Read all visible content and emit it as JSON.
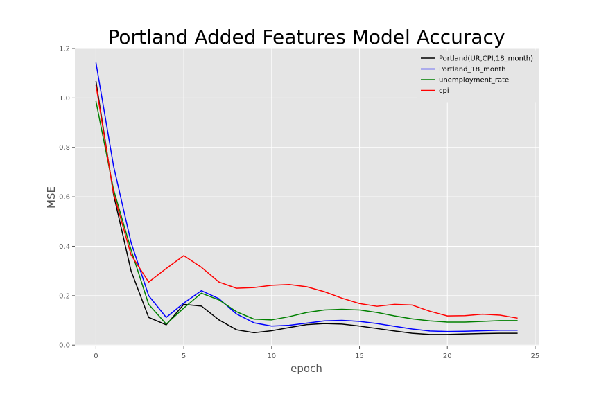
{
  "chart_data": {
    "type": "line",
    "title": "Portland Added Features Model Accuracy",
    "xlabel": "epoch",
    "ylabel": "MSE",
    "xlim": [
      -1.2,
      25.2
    ],
    "ylim": [
      -0.005,
      1.2
    ],
    "xticks": [
      0,
      5,
      10,
      15,
      20,
      25
    ],
    "yticks": [
      0.0,
      0.2,
      0.4,
      0.6,
      0.8,
      1.0,
      1.2
    ],
    "grid": true,
    "style": "ggplot",
    "legend_position": "top-right",
    "x": [
      0,
      1,
      2,
      3,
      4,
      5,
      6,
      7,
      8,
      9,
      10,
      11,
      12,
      13,
      14,
      15,
      16,
      17,
      18,
      19,
      20,
      21,
      22,
      23,
      24
    ],
    "series": [
      {
        "name": "Portland(UR,CPI,18_month)",
        "color": "#000000",
        "values": [
          1.068,
          0.61,
          0.3,
          0.112,
          0.082,
          0.165,
          0.158,
          0.102,
          0.062,
          0.05,
          0.058,
          0.071,
          0.083,
          0.087,
          0.085,
          0.077,
          0.067,
          0.057,
          0.048,
          0.043,
          0.043,
          0.045,
          0.047,
          0.048,
          0.048
        ]
      },
      {
        "name": "Portland_18_month",
        "color": "#0000ff",
        "values": [
          1.143,
          0.725,
          0.415,
          0.2,
          0.112,
          0.17,
          0.22,
          0.188,
          0.126,
          0.09,
          0.077,
          0.08,
          0.089,
          0.098,
          0.1,
          0.096,
          0.087,
          0.076,
          0.065,
          0.057,
          0.055,
          0.056,
          0.058,
          0.06,
          0.06
        ]
      },
      {
        "name": "unemployment_rate",
        "color": "#008000",
        "values": [
          0.987,
          0.63,
          0.385,
          0.165,
          0.085,
          0.15,
          0.21,
          0.183,
          0.135,
          0.105,
          0.102,
          0.115,
          0.132,
          0.142,
          0.145,
          0.142,
          0.132,
          0.118,
          0.106,
          0.098,
          0.093,
          0.093,
          0.096,
          0.099,
          0.099
        ]
      },
      {
        "name": "cpi",
        "color": "#ff0000",
        "values": [
          1.053,
          0.615,
          0.365,
          0.255,
          0.31,
          0.362,
          0.315,
          0.255,
          0.23,
          0.233,
          0.242,
          0.245,
          0.236,
          0.216,
          0.19,
          0.168,
          0.157,
          0.165,
          0.162,
          0.137,
          0.118,
          0.119,
          0.125,
          0.121,
          0.109
        ]
      }
    ]
  }
}
